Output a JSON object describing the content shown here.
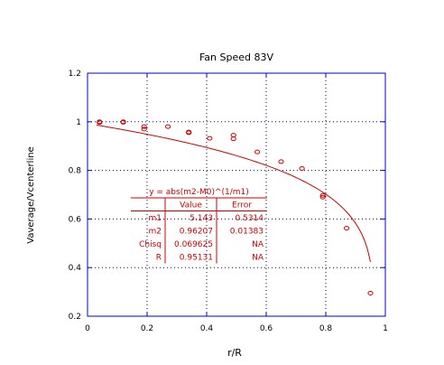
{
  "chart_data": {
    "type": "scatter",
    "title": "Fan Speed 83V",
    "xlabel": "r/R",
    "ylabel": "Vaverage/Vcenterline",
    "xlim": [
      0,
      1
    ],
    "ylim": [
      0.2,
      1.2
    ],
    "x_ticks": [
      0,
      0.2,
      0.4,
      0.6,
      0.8,
      1
    ],
    "y_ticks": [
      0.2,
      0.4,
      0.6,
      0.8,
      1,
      1.2
    ],
    "x_tick_labels": [
      "0",
      "0.2",
      "0.4",
      "0.6",
      "0.8",
      "1"
    ],
    "y_tick_labels": [
      "0.2",
      "0.4",
      "0.6",
      "0.8",
      "1",
      "1.2"
    ],
    "grid": true,
    "colors": {
      "axes": "#0000cc",
      "series": "#cc0000"
    },
    "series": [
      {
        "kind": "points",
        "x": [
          0.04,
          0.04,
          0.12,
          0.12,
          0.19,
          0.19,
          0.27,
          0.34,
          0.34,
          0.41,
          0.49,
          0.49,
          0.57,
          0.65,
          0.72,
          0.79,
          0.79,
          0.87,
          0.95
        ],
        "y": [
          0.997,
          1.0,
          1.0,
          0.998,
          0.98,
          0.97,
          0.98,
          0.958,
          0.955,
          0.932,
          0.945,
          0.93,
          0.876,
          0.836,
          0.808,
          0.697,
          0.69,
          0.562,
          0.295
        ]
      },
      {
        "kind": "fit_curve",
        "equation": "y = abs(m2-M0)^(1/m1)",
        "m1": 5.143,
        "m2": 0.96207,
        "x_range": [
          0.03,
          0.95
        ]
      }
    ],
    "fit_box": {
      "title": "y = abs(m2-M0)^(1/m1)",
      "headers": [
        "",
        "Value",
        "Error"
      ],
      "rows": [
        [
          "m1",
          "5.143",
          "0.5314"
        ],
        [
          "m2",
          "0.96207",
          "0.01383"
        ],
        [
          "Chisq",
          "0.069625",
          "NA"
        ],
        [
          "R",
          "0.95131",
          "NA"
        ]
      ]
    }
  }
}
